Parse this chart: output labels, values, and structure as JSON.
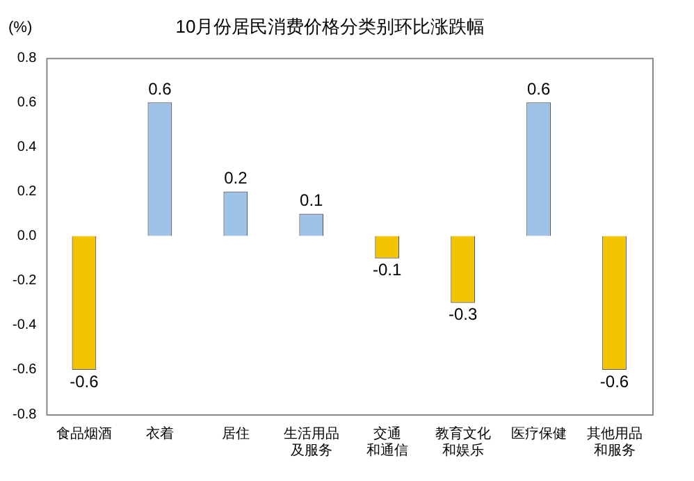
{
  "chart_data": {
    "type": "bar",
    "title": "10月份居民消费价格分类别环比涨跌幅",
    "ylabel": "(%)",
    "categories": [
      "食品烟酒",
      "衣着",
      "居住",
      "生活用品及服务",
      "交通和通信",
      "教育文化和娱乐",
      "医疗保健",
      "其他用品和服务"
    ],
    "values": [
      -0.6,
      0.6,
      0.2,
      0.1,
      -0.1,
      -0.3,
      0.6,
      -0.6
    ],
    "colors": [
      "#f5c400",
      "#9dc3e6",
      "#9dc3e6",
      "#9dc3e6",
      "#f5c400",
      "#f5c400",
      "#9dc3e6",
      "#f5c400"
    ],
    "ylim": [
      -0.8,
      0.8
    ],
    "yticks": [
      -0.8,
      -0.6,
      -0.4,
      -0.2,
      {
        "value": 0,
        "label": "0.0"
      },
      0.2,
      0.4,
      0.6,
      0.8
    ],
    "grid": false,
    "legend": false,
    "data_labels": true
  }
}
